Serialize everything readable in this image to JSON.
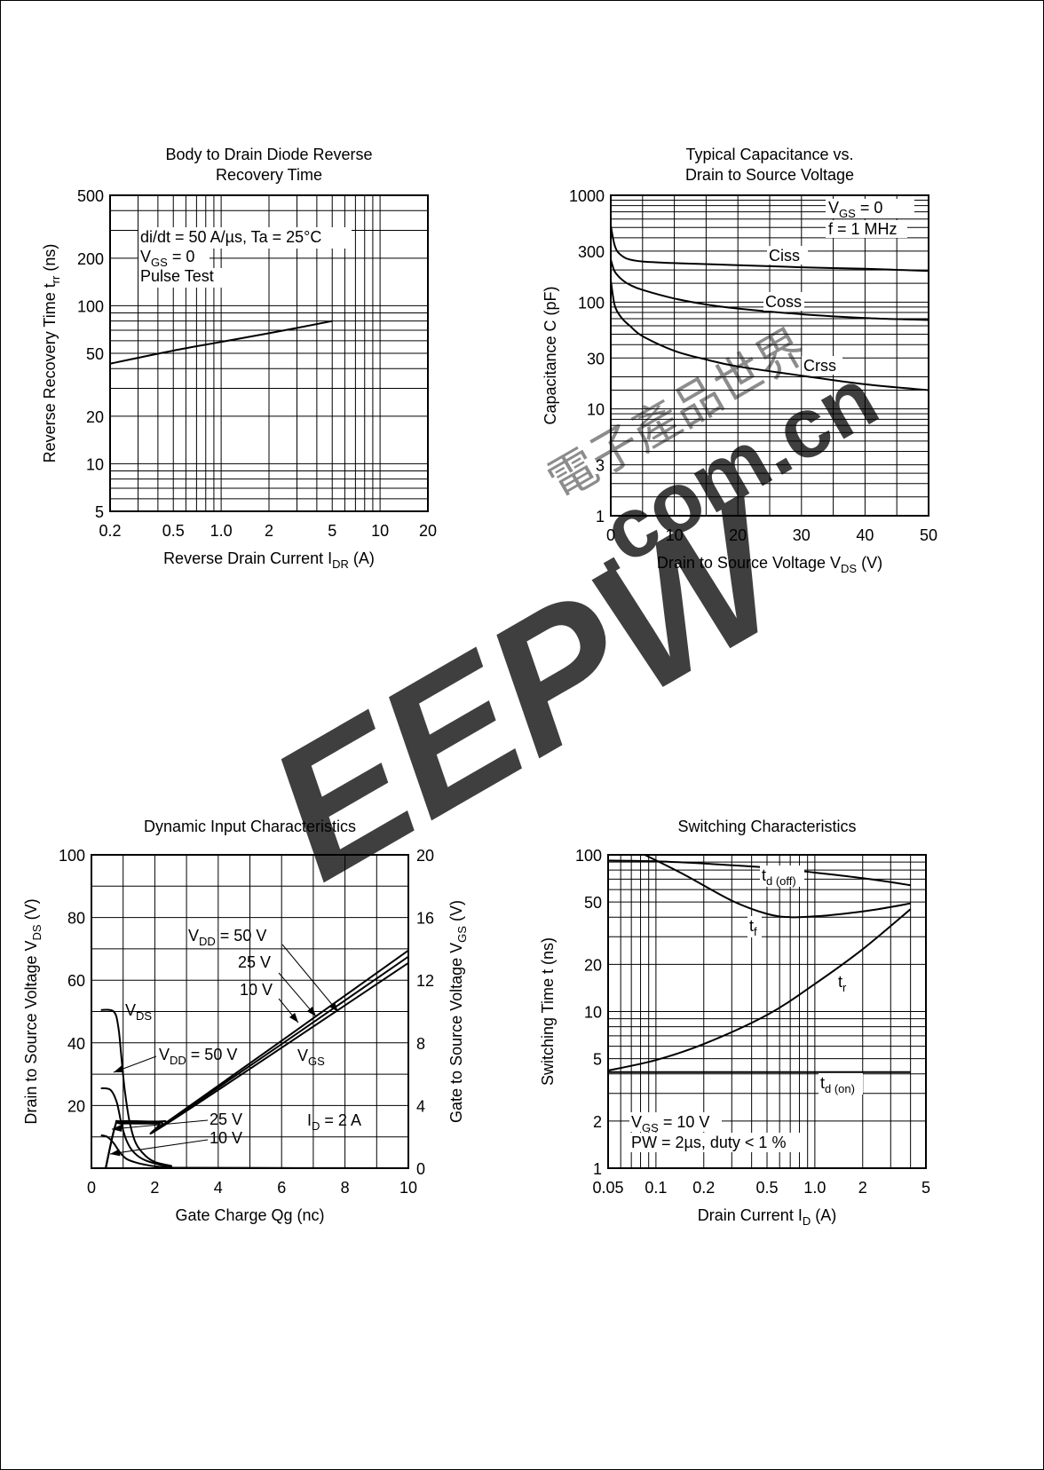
{
  "chart_data": [
    {
      "type": "line",
      "title": "Body to  Drain Diode Reverse\nRecovery Time",
      "xlabel": "Reverse Drain Current  I_DR  (A)",
      "ylabel": "Reverse Recovery Time  t_rr  (ns)",
      "x_scale": "log",
      "y_scale": "log",
      "xlim": [
        0.2,
        20
      ],
      "ylim": [
        5,
        500
      ],
      "x_ticks": [
        "0.2",
        "0.5",
        "1.0",
        "2",
        "5",
        "10",
        "20"
      ],
      "y_ticks": [
        "5",
        "10",
        "20",
        "50",
        "100",
        "200",
        "500"
      ],
      "annotations": [
        "di/dt = 50 A/µs, Ta = 25°C",
        "V_GS = 0",
        "Pulse Test"
      ],
      "series": [
        {
          "x": [
            0.2,
            0.5,
            1.0,
            2,
            5
          ],
          "y": [
            43,
            52,
            59,
            67,
            80
          ]
        }
      ]
    },
    {
      "type": "line",
      "title": "Typical Capacitance vs.\nDrain to Source Voltage",
      "xlabel": "Drain to Source Voltage  V_DS  (V)",
      "ylabel": "Capacitance  C  (pF)",
      "x_scale": "linear",
      "y_scale": "log",
      "xlim": [
        0,
        50
      ],
      "ylim": [
        1,
        1000
      ],
      "x_ticks": [
        "0",
        "10",
        "20",
        "30",
        "40",
        "50"
      ],
      "y_ticks": [
        "1",
        "3",
        "10",
        "30",
        "100",
        "300",
        "1000"
      ],
      "annotations": [
        "V_GS = 0",
        "f = 1 MHz"
      ],
      "series": [
        {
          "name": "Ciss",
          "x": [
            0,
            0.5,
            1,
            2,
            3,
            5,
            10,
            20,
            30,
            40,
            50
          ],
          "y": [
            520,
            360,
            300,
            265,
            250,
            240,
            232,
            222,
            212,
            205,
            196
          ]
        },
        {
          "name": "Coss",
          "x": [
            0,
            0.5,
            1,
            2,
            3,
            5,
            10,
            15,
            20,
            30,
            40,
            50
          ],
          "y": [
            250,
            200,
            180,
            158,
            145,
            130,
            108,
            95,
            87,
            77,
            71,
            68
          ]
        },
        {
          "name": "Crss",
          "x": [
            0,
            0.5,
            1,
            2,
            3,
            5,
            10,
            15,
            20,
            30,
            40,
            50
          ],
          "y": [
            160,
            100,
            82,
            68,
            60,
            48,
            35,
            29,
            25,
            20.5,
            17,
            15
          ]
        }
      ]
    },
    {
      "type": "line",
      "title": "Dynamic Input Characteristics",
      "xlabel": "Gate Charge  Qg  (nc)",
      "ylabel": "Drain to Source Voltage  V_DS  (V)",
      "y2label": "Gate to Source Voltage  V_GS  (V)",
      "x_scale": "linear",
      "y_scale": "linear",
      "xlim": [
        0,
        10
      ],
      "ylim": [
        0,
        100
      ],
      "y2lim": [
        0,
        20
      ],
      "x_ticks": [
        "0",
        "2",
        "4",
        "6",
        "8",
        "10"
      ],
      "y_ticks": [
        "20",
        "40",
        "60",
        "80",
        "100"
      ],
      "y2_ticks": [
        "0",
        "4",
        "8",
        "12",
        "16",
        "20"
      ],
      "annotations": [
        "I_D = 2 A",
        "V_DS",
        "V_GS",
        "V_DD = 50 V",
        "25 V",
        "10 V",
        "V_DD = 50 V",
        "25 V",
        "10 V"
      ],
      "series": [
        {
          "name": "V_DS (V_DD = 50 V)",
          "x": [
            0.3,
            0.7,
            0.85,
            0.95,
            1.05,
            1.2,
            1.4,
            1.7,
            2.0,
            2.5,
            3.0,
            10
          ],
          "y": [
            50.5,
            50,
            45,
            35,
            25,
            15,
            8,
            4,
            2,
            0.8,
            0.1,
            0
          ]
        },
        {
          "name": "V_DS (V_DD = 25 V)",
          "x": [
            0.3,
            0.6,
            0.8,
            0.95,
            1.1,
            1.3,
            1.6,
            2.0,
            2.5,
            3.0,
            10
          ],
          "y": [
            25.5,
            25,
            21,
            14,
            9,
            5.5,
            3,
            1.5,
            0.5,
            0.1,
            0
          ]
        },
        {
          "name": "V_DS (V_DD = 10 V)",
          "x": [
            0.3,
            0.5,
            0.7,
            0.9,
            1.1,
            1.4,
            1.8,
            2.3,
            2.8,
            10
          ],
          "y": [
            10.5,
            10,
            8,
            5,
            3,
            1.8,
            0.9,
            0.3,
            0.05,
            0
          ]
        },
        {
          "name": "V_GS (V_DD = 50 V)",
          "x": [
            0.45,
            0.75,
            0.95,
            2.3,
            2.7,
            10
          ],
          "y": [
            0,
            2.7,
            3.0,
            3.0,
            3.4,
            13.9
          ]
        },
        {
          "name": "V_GS (V_DD = 25 V)",
          "x": [
            0.45,
            0.75,
            0.95,
            2.2,
            2.6,
            10
          ],
          "y": [
            0,
            2.7,
            2.9,
            2.9,
            3.2,
            13.5
          ]
        },
        {
          "name": "V_GS (V_DD = 10 V)",
          "x": [
            0.45,
            0.75,
            0.95,
            2.1,
            2.5,
            10
          ],
          "y": [
            0,
            2.7,
            2.85,
            2.85,
            3.0,
            13.1
          ]
        }
      ]
    },
    {
      "type": "line",
      "title": "Switching Characteristics",
      "xlabel": "Drain Current  I_D  (A)",
      "ylabel": "Switching Time  t  (ns)",
      "x_scale": "log",
      "y_scale": "log",
      "xlim": [
        0.05,
        5
      ],
      "ylim": [
        1,
        100
      ],
      "x_ticks": [
        "0.05",
        "0.1",
        "0.2",
        "0.5",
        "1.0",
        "2",
        "5"
      ],
      "y_ticks": [
        "1",
        "2",
        "5",
        "10",
        "20",
        "50",
        "100"
      ],
      "annotations": [
        "V_GS = 10 V",
        "PW = 2µs, duty < 1 %"
      ],
      "series": [
        {
          "name": "t_d (off)",
          "x": [
            0.05,
            0.1,
            0.2,
            0.5,
            1.0,
            2,
            4
          ],
          "y": [
            92,
            91,
            88,
            83,
            77,
            71,
            64
          ]
        },
        {
          "name": "t_f",
          "x": [
            0.085,
            0.15,
            0.3,
            0.5,
            0.7,
            1.0,
            1.5,
            2.5,
            4
          ],
          "y": [
            100,
            75,
            51,
            42,
            40,
            40.5,
            42,
            45,
            49
          ]
        },
        {
          "name": "t_r",
          "x": [
            0.05,
            0.1,
            0.2,
            0.5,
            1.0,
            2,
            4
          ],
          "y": [
            4.2,
            4.9,
            6.2,
            9.5,
            15,
            25,
            45
          ]
        },
        {
          "name": "t_d (on)",
          "x": [
            0.05,
            4
          ],
          "y": [
            4.1,
            4.1
          ]
        }
      ]
    }
  ],
  "watermark": {
    "logo_text": "EEPW",
    "domain_text": ".com.cn",
    "chinese_text": "電子產品世界",
    "color": "#e8787e"
  }
}
